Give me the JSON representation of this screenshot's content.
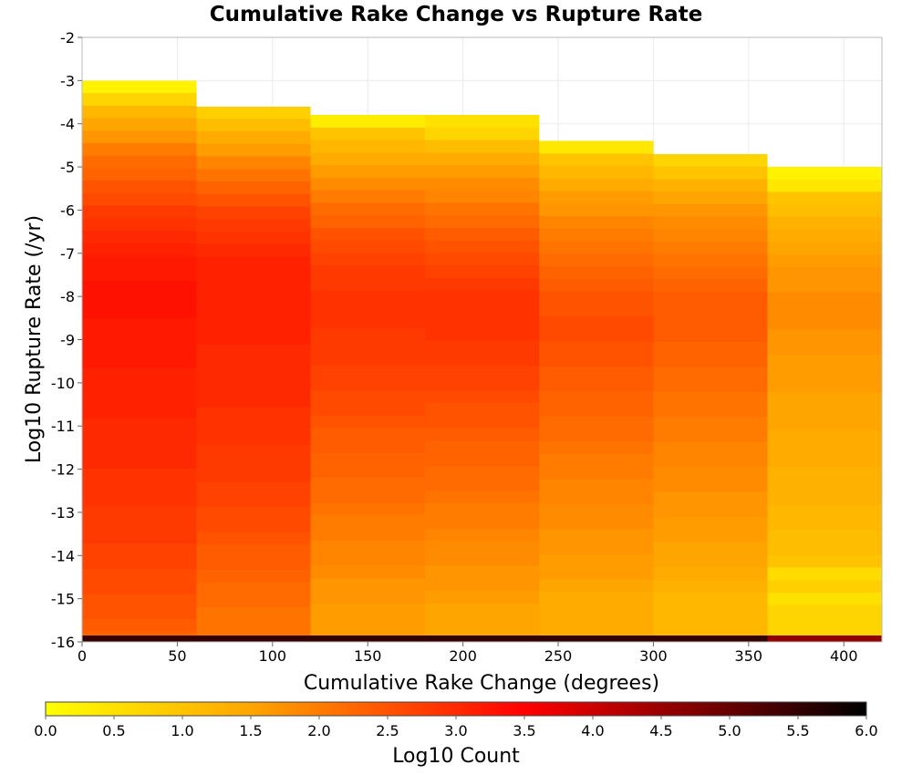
{
  "chart_data": {
    "type": "heatmap",
    "title": "Cumulative Rake Change vs Rupture Rate",
    "xlabel": "Cumulative Rake Change (degrees)",
    "ylabel": "Log10 Rupture Rate (/yr)",
    "xlim": [
      0,
      420
    ],
    "ylim": [
      -16,
      -2
    ],
    "x_ticks": [
      "0",
      "50",
      "100",
      "150",
      "200",
      "250",
      "300",
      "350",
      "400"
    ],
    "x_tick_values": [
      0,
      50,
      100,
      150,
      200,
      250,
      300,
      350,
      400
    ],
    "y_ticks": [
      "-2",
      "-3",
      "-4",
      "-5",
      "-6",
      "-7",
      "-8",
      "-9",
      "-10",
      "-11",
      "-12",
      "-13",
      "-14",
      "-15",
      "-16"
    ],
    "y_tick_values": [
      -2,
      -3,
      -4,
      -5,
      -6,
      -7,
      -8,
      -9,
      -10,
      -11,
      -12,
      -13,
      -14,
      -15,
      -16
    ],
    "grid": true,
    "x_bin_width": 60,
    "y_bin_height": 0.29,
    "colorbar": {
      "label": "Log10 Count",
      "range": [
        0,
        6
      ],
      "ticks": [
        "0.0",
        "0.5",
        "1.0",
        "1.5",
        "2.0",
        "2.5",
        "3.0",
        "3.5",
        "4.0",
        "4.5",
        "5.0",
        "5.5",
        "6.0"
      ],
      "tick_values": [
        0,
        0.5,
        1,
        1.5,
        2,
        2.5,
        3,
        3.5,
        4,
        4.5,
        5,
        5.5,
        6
      ],
      "colors": [
        "#ffff00",
        "#ffa500",
        "#ff0000",
        "#000000"
      ],
      "stops": [
        0,
        1.5,
        3.5,
        6
      ]
    },
    "columns": [
      {
        "x_start": 0,
        "y_top": -3.0,
        "values": [
          0.2,
          0.7,
          1.2,
          1.5,
          1.7,
          2.0,
          2.2,
          2.3,
          2.5,
          2.6,
          2.8,
          2.9,
          3.0,
          3.1,
          3.2,
          3.2,
          3.3,
          3.3,
          3.3,
          3.2,
          3.2,
          3.2,
          3.2,
          3.1,
          3.1,
          3.1,
          3.1,
          3.0,
          3.0,
          3.0,
          3.0,
          2.9,
          2.9,
          2.9,
          2.8,
          2.8,
          2.8,
          2.7,
          2.7,
          2.6,
          2.6,
          2.5,
          2.5,
          2.4,
          2.3,
          5.5
        ]
      },
      {
        "x_start": 60,
        "y_top": -3.6,
        "values": [
          0.8,
          1.1,
          1.4,
          1.6,
          1.9,
          2.1,
          2.3,
          2.5,
          2.7,
          2.8,
          2.9,
          3.0,
          3.1,
          3.1,
          3.1,
          3.1,
          3.1,
          3.1,
          3.1,
          3.0,
          3.0,
          3.0,
          3.0,
          3.0,
          2.9,
          2.9,
          2.9,
          2.8,
          2.8,
          2.8,
          2.7,
          2.7,
          2.6,
          2.6,
          2.5,
          2.4,
          2.4,
          2.3,
          2.2,
          2.2,
          2.1,
          5.5
        ]
      },
      {
        "x_start": 120,
        "y_top": -3.8,
        "values": [
          0.3,
          1.0,
          1.2,
          1.4,
          1.6,
          1.8,
          2.0,
          2.2,
          2.3,
          2.5,
          2.6,
          2.7,
          2.8,
          2.8,
          2.9,
          2.9,
          2.9,
          2.8,
          2.8,
          2.8,
          2.7,
          2.7,
          2.6,
          2.6,
          2.5,
          2.4,
          2.4,
          2.3,
          2.3,
          2.2,
          2.2,
          2.1,
          2.0,
          2.0,
          1.9,
          1.9,
          1.8,
          1.7,
          1.7,
          1.6,
          5.5
        ]
      },
      {
        "x_start": 180,
        "y_top": -3.8,
        "values": [
          0.5,
          0.7,
          1.1,
          1.4,
          1.6,
          1.8,
          1.9,
          2.1,
          2.2,
          2.4,
          2.5,
          2.6,
          2.7,
          2.8,
          2.9,
          2.9,
          2.9,
          2.9,
          2.8,
          2.8,
          2.7,
          2.7,
          2.6,
          2.5,
          2.5,
          2.4,
          2.3,
          2.3,
          2.2,
          2.2,
          2.1,
          2.0,
          2.0,
          1.9,
          1.8,
          1.8,
          1.7,
          1.7,
          1.6,
          1.5,
          5.5
        ]
      },
      {
        "x_start": 240,
        "y_top": -4.4,
        "values": [
          0.4,
          1.0,
          1.2,
          1.4,
          1.6,
          1.7,
          1.9,
          2.0,
          2.1,
          2.2,
          2.3,
          2.4,
          2.5,
          2.5,
          2.6,
          2.6,
          2.5,
          2.5,
          2.4,
          2.4,
          2.3,
          2.3,
          2.2,
          2.2,
          2.1,
          2.0,
          2.0,
          1.9,
          1.9,
          1.8,
          1.8,
          1.7,
          1.7,
          1.6,
          1.6,
          1.5,
          1.4,
          5.5
        ]
      },
      {
        "x_start": 300,
        "y_top": -4.7,
        "values": [
          0.7,
          1.0,
          1.3,
          1.5,
          1.7,
          1.8,
          1.9,
          2.0,
          2.1,
          2.2,
          2.3,
          2.4,
          2.4,
          2.4,
          2.4,
          2.3,
          2.3,
          2.2,
          2.2,
          2.1,
          2.1,
          2.0,
          2.0,
          1.9,
          1.9,
          1.8,
          1.8,
          1.7,
          1.7,
          1.6,
          1.6,
          1.5,
          1.5,
          1.4,
          1.3,
          1.2,
          5.5
        ]
      },
      {
        "x_start": 360,
        "y_top": -5.0,
        "values": [
          0.2,
          0.4,
          1.0,
          1.1,
          1.3,
          1.4,
          1.5,
          1.6,
          1.7,
          1.7,
          1.8,
          1.8,
          1.8,
          1.7,
          1.7,
          1.6,
          1.6,
          1.6,
          1.5,
          1.5,
          1.5,
          1.4,
          1.4,
          1.4,
          1.3,
          1.3,
          1.3,
          1.2,
          1.2,
          1.1,
          1.1,
          1.0,
          0.6,
          0.8,
          0.5,
          0.7,
          4.6
        ]
      }
    ]
  }
}
